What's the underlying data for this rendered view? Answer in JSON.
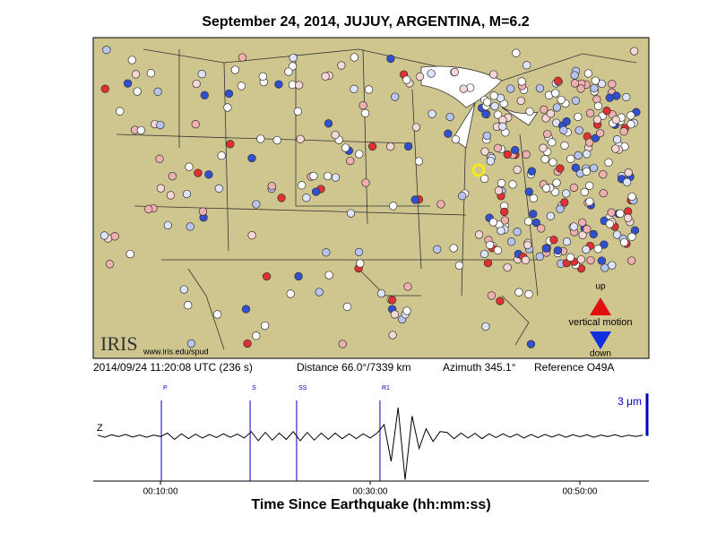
{
  "header": {
    "title": "September 24, 2014, JUJUY, ARGENTINA, M=6.2"
  },
  "map": {
    "logo": "IRIS",
    "url": "www.iris.edu/spud",
    "legend_up": "up",
    "legend_title": "vertical motion",
    "legend_down": "down"
  },
  "info": {
    "time": "2014/09/24 11:20:08 UTC (236 s)",
    "distance": "Distance  66.0°/7339 km",
    "azimuth": "Azimuth 345.1°",
    "reference": "Reference O49A"
  },
  "chart_data": {
    "type": "line",
    "channel": "Z",
    "xlabel": "Time Since Earthquake (hh:mm:ss)",
    "xlim": [
      215,
      3395
    ],
    "ylim": [
      -3.2,
      3.9
    ],
    "xticks": [
      {
        "value": 600,
        "label": "00:10:00"
      },
      {
        "value": 1800,
        "label": "00:30:00"
      },
      {
        "value": 3000,
        "label": "00:50:00"
      }
    ],
    "phases": [
      {
        "name": "P",
        "time": 605
      },
      {
        "name": "S",
        "time": 1113
      },
      {
        "name": "SS",
        "time": 1379
      },
      {
        "name": "R1",
        "time": 1856
      }
    ],
    "scale_value": 3,
    "scale_label": "3 μm",
    "x": [
      240,
      280,
      320,
      360,
      400,
      440,
      480,
      520,
      560,
      600,
      640,
      680,
      720,
      760,
      800,
      840,
      880,
      920,
      960,
      1000,
      1040,
      1080,
      1120,
      1160,
      1200,
      1240,
      1280,
      1320,
      1360,
      1400,
      1440,
      1480,
      1520,
      1560,
      1600,
      1640,
      1680,
      1720,
      1760,
      1800,
      1840,
      1880,
      1920,
      1960,
      2000,
      2040,
      2080,
      2120,
      2160,
      2200,
      2240,
      2280,
      2320,
      2360,
      2400,
      2440,
      2480,
      2520,
      2560,
      2600,
      2640,
      2680,
      2720,
      2760,
      2800,
      2840,
      2880,
      2920,
      2960,
      3000,
      3040,
      3080,
      3120,
      3160,
      3200,
      3240,
      3280,
      3320,
      3360
    ],
    "series": [
      {
        "color": "#000000",
        "values": [
          0.05,
          -0.1,
          0.08,
          -0.05,
          0.1,
          -0.08,
          0.05,
          -0.1,
          0.06,
          -0.05,
          0.2,
          -0.25,
          0.15,
          -0.2,
          0.12,
          -0.15,
          0.1,
          -0.12,
          0.15,
          -0.1,
          0.12,
          -0.15,
          0.3,
          -0.35,
          0.25,
          -0.3,
          0.2,
          -0.25,
          0.3,
          -0.35,
          0.25,
          -0.3,
          0.2,
          -0.25,
          0.2,
          -0.2,
          0.15,
          -0.2,
          0.15,
          -0.15,
          0.2,
          0.8,
          -1.8,
          2.0,
          -3.1,
          1.4,
          -0.9,
          0.5,
          -0.4,
          0.3,
          0.25,
          -0.2,
          0.2,
          -0.15,
          0.18,
          -0.2,
          0.15,
          -0.12,
          0.15,
          -0.1,
          0.12,
          -0.15,
          0.1,
          -0.12,
          0.1,
          -0.08,
          0.1,
          -0.1,
          0.08,
          -0.06,
          0.08,
          -0.1,
          0.06,
          -0.05,
          0.08,
          -0.06,
          0.05,
          -0.05,
          0.05
        ]
      }
    ]
  }
}
